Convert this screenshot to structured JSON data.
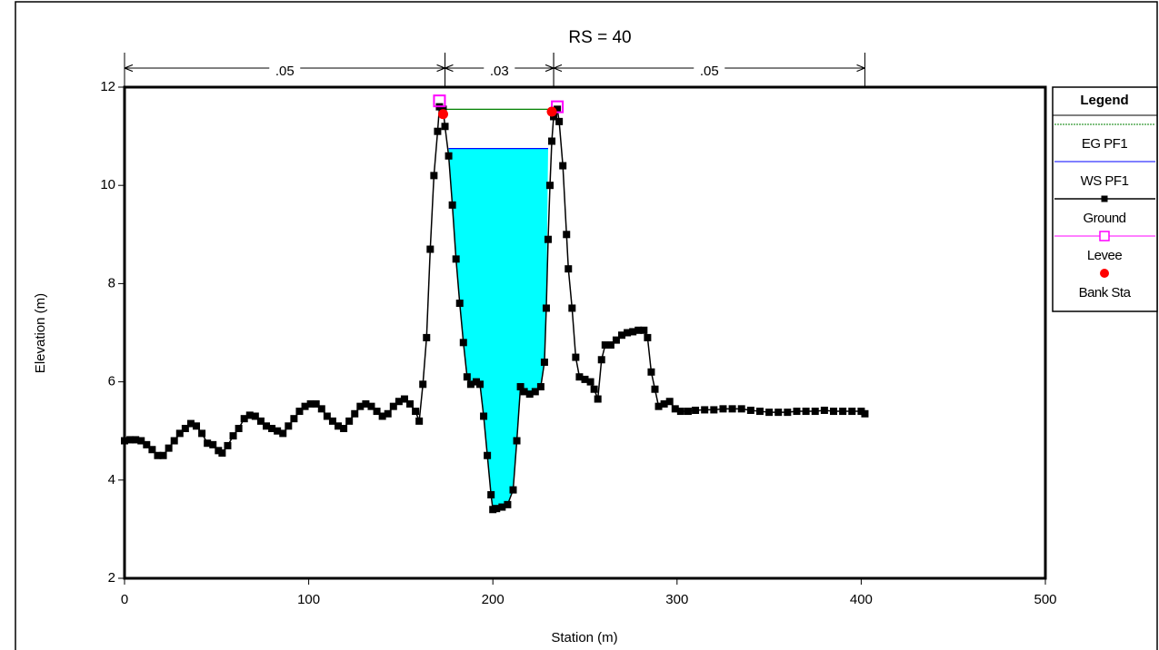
{
  "chart_data": {
    "type": "cross-section",
    "title": "RS = 40",
    "x_label": "Station (m)",
    "y_label": "Elevation (m)",
    "xlim": [
      0,
      500
    ],
    "xticks": [
      0,
      100,
      200,
      300,
      400,
      500
    ],
    "ylim": [
      2,
      12
    ],
    "yticks": [
      2,
      4,
      6,
      8,
      10,
      12
    ],
    "legend_title": "Legend",
    "legend_position": "right",
    "roughness": [
      {
        "label": ".05",
        "x": [
          0,
          174
        ]
      },
      {
        "label": ".03",
        "x": [
          174,
          233
        ]
      },
      {
        "label": ".05",
        "x": [
          233,
          402
        ]
      }
    ],
    "series": [
      {
        "name": "EG PF1",
        "color": "#008000",
        "line": true,
        "x": [
          173,
          232
        ],
        "values": [
          11.55,
          11.55
        ]
      },
      {
        "name": "WS PF1",
        "color": "#0000ff",
        "line": true,
        "fill": "#00ffff",
        "x": [
          176,
          230
        ],
        "values": [
          10.75,
          10.75
        ]
      },
      {
        "name": "Ground",
        "color": "#000000",
        "line": true,
        "marker": "square",
        "x": [
          0,
          3,
          6,
          9,
          12,
          15,
          18,
          21,
          24,
          27,
          30,
          33,
          36,
          39,
          42,
          45,
          48,
          51,
          53,
          56,
          59,
          62,
          65,
          68,
          71,
          74,
          77,
          80,
          83,
          86,
          89,
          92,
          95,
          98,
          101,
          104,
          107,
          110,
          113,
          116,
          119,
          122,
          125,
          128,
          131,
          134,
          137,
          140,
          143,
          146,
          149,
          152,
          155,
          158,
          160,
          162,
          164,
          166,
          168,
          170,
          171,
          173,
          174,
          176,
          178,
          180,
          182,
          184,
          186,
          188,
          191,
          193,
          195,
          197,
          199,
          200,
          202,
          205,
          208,
          211,
          213,
          215,
          217,
          220,
          223,
          226,
          228,
          229,
          230,
          231,
          232,
          233,
          235,
          236,
          238,
          240,
          241,
          243,
          245,
          247,
          250,
          253,
          255,
          257,
          259,
          261,
          264,
          267,
          270,
          273,
          276,
          279,
          282,
          284,
          286,
          288,
          290,
          293,
          296,
          299,
          302,
          306,
          310,
          315,
          320,
          325,
          330,
          335,
          340,
          345,
          350,
          355,
          360,
          365,
          370,
          375,
          380,
          385,
          390,
          395,
          400,
          402
        ],
        "values": [
          4.8,
          4.82,
          4.82,
          4.8,
          4.72,
          4.62,
          4.5,
          4.5,
          4.65,
          4.8,
          4.95,
          5.05,
          5.15,
          5.1,
          4.95,
          4.75,
          4.72,
          4.6,
          4.55,
          4.7,
          4.9,
          5.05,
          5.25,
          5.32,
          5.3,
          5.2,
          5.1,
          5.05,
          5.0,
          4.95,
          5.1,
          5.25,
          5.4,
          5.5,
          5.55,
          5.55,
          5.45,
          5.3,
          5.2,
          5.1,
          5.05,
          5.2,
          5.35,
          5.5,
          5.55,
          5.5,
          5.4,
          5.3,
          5.35,
          5.5,
          5.6,
          5.65,
          5.55,
          5.4,
          5.2,
          5.95,
          6.9,
          8.7,
          10.2,
          11.1,
          11.6,
          11.55,
          11.2,
          10.6,
          9.6,
          8.5,
          7.6,
          6.8,
          6.1,
          5.95,
          6.0,
          5.95,
          5.3,
          4.5,
          3.7,
          3.4,
          3.42,
          3.45,
          3.5,
          3.8,
          4.8,
          5.9,
          5.8,
          5.75,
          5.8,
          5.9,
          6.4,
          7.5,
          8.9,
          10.0,
          10.9,
          11.4,
          11.55,
          11.3,
          10.4,
          9.0,
          8.3,
          7.5,
          6.5,
          6.1,
          6.05,
          6.0,
          5.85,
          5.65,
          6.45,
          6.75,
          6.75,
          6.85,
          6.95,
          7.0,
          7.02,
          7.05,
          7.05,
          6.9,
          6.2,
          5.85,
          5.5,
          5.55,
          5.6,
          5.45,
          5.4,
          5.4,
          5.42,
          5.43,
          5.43,
          5.45,
          5.45,
          5.45,
          5.42,
          5.4,
          5.38,
          5.38,
          5.38,
          5.4,
          5.4,
          5.4,
          5.42,
          5.4,
          5.4,
          5.4,
          5.4,
          5.35
        ]
      },
      {
        "name": "Levee",
        "color": "#ff00ff",
        "line": false,
        "marker": "square-open",
        "x": [
          171,
          235
        ],
        "values": [
          11.72,
          11.6
        ]
      },
      {
        "name": "Bank Sta",
        "color": "#ff0000",
        "line": false,
        "marker": "circle",
        "x": [
          173,
          232
        ],
        "values": [
          11.45,
          11.5
        ]
      }
    ]
  }
}
